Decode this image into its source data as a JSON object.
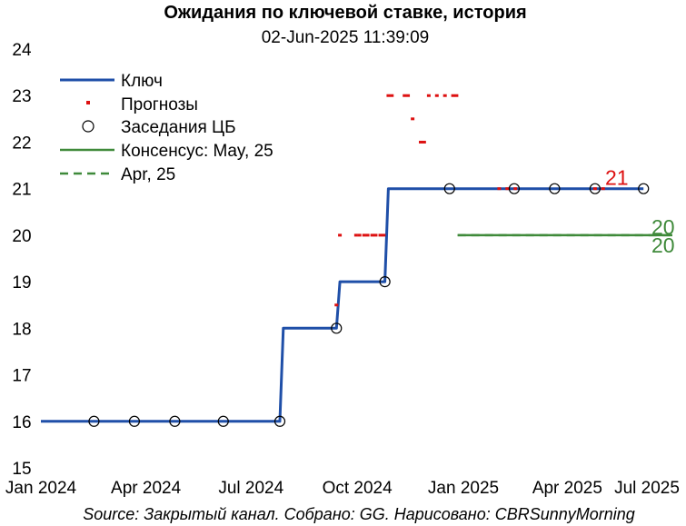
{
  "chart_data": {
    "type": "line",
    "title": "Ожидания по ключевой ставке, история",
    "subtitle": "02-Jun-2025 11:39:09",
    "source": "Source: Закрытый канал. Собрано: GG. Нарисовано: CBRSunnyMorning",
    "ylim": [
      15,
      24
    ],
    "yticks": [
      "15",
      "16",
      "17",
      "18",
      "19",
      "20",
      "21",
      "22",
      "23",
      "24"
    ],
    "xlim": [
      "2024-01-01",
      "2025-07-01"
    ],
    "xticks": [
      {
        "label": "Jan 2024",
        "date": "2024-01-01"
      },
      {
        "label": "Apr 2024",
        "date": "2024-04-01"
      },
      {
        "label": "Jul 2024",
        "date": "2024-07-01"
      },
      {
        "label": "Oct 2024",
        "date": "2024-10-01"
      },
      {
        "label": "Jan 2025",
        "date": "2025-01-01"
      },
      {
        "label": "Apr 2025",
        "date": "2025-04-01"
      },
      {
        "label": "Jul 2025",
        "date": "2025-07-01"
      }
    ],
    "grid": false,
    "legend_position": "top-left",
    "legend": [
      {
        "label": "Ключ",
        "style": "solid",
        "color": "#1f4fa8"
      },
      {
        "label": "Прогнозы",
        "style": "dot",
        "color": "#dd1111"
      },
      {
        "label": "Заседания ЦБ",
        "style": "circle",
        "color": "#000000"
      },
      {
        "label": "Консенсус: May, 25",
        "style": "solid",
        "color": "#3f8a3a"
      },
      {
        "label": "Apr, 25",
        "style": "dashed",
        "color": "#3f8a3a"
      }
    ],
    "series": [
      {
        "name": "Ключ",
        "color": "#1f4fa8",
        "step_points": [
          {
            "date": "2024-01-01",
            "value": 16
          },
          {
            "date": "2024-07-26",
            "value": 16
          },
          {
            "date": "2024-07-29",
            "value": 18
          },
          {
            "date": "2024-09-13",
            "value": 18
          },
          {
            "date": "2024-09-16",
            "value": 19
          },
          {
            "date": "2024-10-25",
            "value": 19
          },
          {
            "date": "2024-10-28",
            "value": 21
          },
          {
            "date": "2025-06-06",
            "value": 21
          }
        ]
      },
      {
        "name": "Прогнозы",
        "color": "#dd1111",
        "points": [
          {
            "date": "2024-09-13",
            "value": 18.5
          },
          {
            "date": "2024-09-16",
            "value": 20
          },
          {
            "date": "2024-09-30",
            "value": 20
          },
          {
            "date": "2024-10-03",
            "value": 20
          },
          {
            "date": "2024-10-07",
            "value": 20
          },
          {
            "date": "2024-10-10",
            "value": 20
          },
          {
            "date": "2024-10-14",
            "value": 20
          },
          {
            "date": "2024-10-17",
            "value": 20
          },
          {
            "date": "2024-10-21",
            "value": 20
          },
          {
            "date": "2024-10-24",
            "value": 20
          },
          {
            "date": "2024-10-28",
            "value": 23
          },
          {
            "date": "2024-10-31",
            "value": 23
          },
          {
            "date": "2024-11-11",
            "value": 23
          },
          {
            "date": "2024-11-14",
            "value": 23
          },
          {
            "date": "2024-11-18",
            "value": 22.5
          },
          {
            "date": "2024-11-25",
            "value": 22
          },
          {
            "date": "2024-11-28",
            "value": 22
          },
          {
            "date": "2024-12-02",
            "value": 23
          },
          {
            "date": "2024-12-09",
            "value": 23
          },
          {
            "date": "2024-12-16",
            "value": 23
          },
          {
            "date": "2024-12-23",
            "value": 23
          },
          {
            "date": "2024-12-26",
            "value": 23
          },
          {
            "date": "2025-02-01",
            "value": 21
          },
          {
            "date": "2025-02-08",
            "value": 21
          },
          {
            "date": "2025-02-15",
            "value": 21
          },
          {
            "date": "2025-04-25",
            "value": 21
          },
          {
            "date": "2025-05-02",
            "value": 21
          }
        ],
        "end_label": "21"
      },
      {
        "name": "Заседания ЦБ",
        "color": "#000000",
        "points": [
          {
            "date": "2024-02-16",
            "value": 16
          },
          {
            "date": "2024-03-22",
            "value": 16
          },
          {
            "date": "2024-04-26",
            "value": 16
          },
          {
            "date": "2024-06-07",
            "value": 16
          },
          {
            "date": "2024-07-26",
            "value": 16
          },
          {
            "date": "2024-09-13",
            "value": 18
          },
          {
            "date": "2024-10-25",
            "value": 19
          },
          {
            "date": "2024-12-20",
            "value": 21
          },
          {
            "date": "2025-02-14",
            "value": 21
          },
          {
            "date": "2025-03-21",
            "value": 21
          },
          {
            "date": "2025-04-25",
            "value": 21
          },
          {
            "date": "2025-06-06",
            "value": 21
          }
        ]
      },
      {
        "name": "Консенсус: May, 25",
        "color": "#3f8a3a",
        "style": "solid",
        "points": [
          {
            "date": "2024-12-27",
            "value": 20
          },
          {
            "date": "2025-07-01",
            "value": 20
          }
        ],
        "end_label": "20"
      },
      {
        "name": "Apr, 25",
        "color": "#3f8a3a",
        "style": "dashed",
        "points": [
          {
            "date": "2024-12-27",
            "value": 20
          },
          {
            "date": "2025-07-01",
            "value": 20
          }
        ],
        "end_label": "20"
      }
    ]
  }
}
